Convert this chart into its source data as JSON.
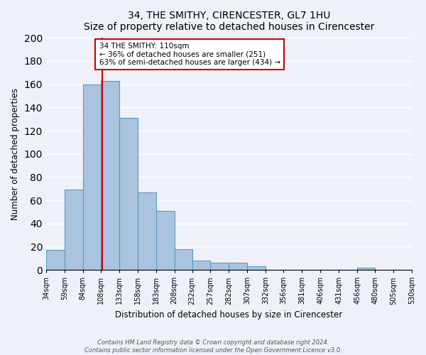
{
  "title": "34, THE SMITHY, CIRENCESTER, GL7 1HU",
  "subtitle": "Size of property relative to detached houses in Cirencester",
  "xlabel": "Distribution of detached houses by size in Cirencester",
  "ylabel": "Number of detached properties",
  "bin_edges": [
    34,
    59,
    84,
    108,
    133,
    158,
    183,
    208,
    232,
    257,
    282,
    307,
    332,
    356,
    381,
    406,
    431,
    456,
    480,
    505,
    530
  ],
  "bin_labels": [
    "34sqm",
    "59sqm",
    "84sqm",
    "108sqm",
    "133sqm",
    "158sqm",
    "183sqm",
    "208sqm",
    "232sqm",
    "257sqm",
    "282sqm",
    "307sqm",
    "332sqm",
    "356sqm",
    "381sqm",
    "406sqm",
    "431sqm",
    "456sqm",
    "480sqm",
    "505sqm",
    "530sqm"
  ],
  "counts": [
    17,
    69,
    160,
    163,
    131,
    67,
    51,
    18,
    8,
    6,
    6,
    3,
    0,
    0,
    0,
    0,
    0,
    2,
    0,
    0
  ],
  "bar_color": "#aac4e0",
  "bar_edge_color": "#5a9abf",
  "vline_color": "#cc0000",
  "vline_x": 110,
  "annotation_text": "34 THE SMITHY: 110sqm\n← 36% of detached houses are smaller (251)\n63% of semi-detached houses are larger (434) →",
  "annotation_box_color": "#ffffff",
  "annotation_border_color": "#cc0000",
  "ylim": [
    0,
    200
  ],
  "yticks": [
    0,
    20,
    40,
    60,
    80,
    100,
    120,
    140,
    160,
    180,
    200
  ],
  "footer_line1": "Contains HM Land Registry data © Crown copyright and database right 2024.",
  "footer_line2": "Contains public sector information licensed under the Open Government Licence v3.0.",
  "bg_color": "#eef2f8",
  "plot_bg_color": "#eef2f8"
}
